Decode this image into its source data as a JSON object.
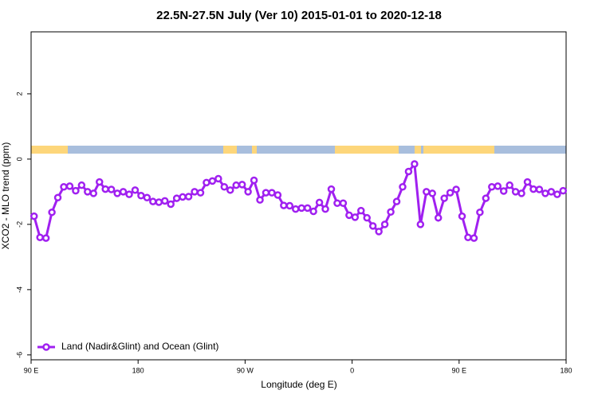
{
  "chart_data": {
    "type": "line",
    "title": "22.5N-27.5N July (Ver 10)   2015-01-01 to 2020-12-18",
    "x_label": "Longitude (deg E)",
    "y_label": "XCO2 - MLO trend (ppm)",
    "x": [
      92.5,
      97.5,
      102.5,
      107.5,
      112.5,
      117.5,
      122.5,
      127.5,
      132.5,
      137.5,
      142.5,
      147.5,
      152.5,
      157.5,
      162.5,
      167.5,
      172.5,
      177.5,
      182.5,
      187.5,
      192.5,
      197.5,
      202.5,
      207.5,
      212.5,
      217.5,
      222.5,
      227.5,
      232.5,
      237.5,
      242.5,
      247.5,
      252.5,
      257.5,
      262.5,
      267.5,
      272.5,
      277.5,
      282.5,
      287.5,
      292.5,
      297.5,
      302.5,
      307.5,
      312.5,
      317.5,
      322.5,
      327.5,
      332.5,
      337.5,
      342.5,
      347.5,
      352.5,
      357.5,
      362.5,
      367.5,
      372.5,
      377.5,
      382.5,
      387.5,
      392.5,
      397.5,
      402.5,
      407.5,
      412.5,
      417.5,
      422.5,
      427.5,
      432.5,
      437.5,
      442.5,
      447.5,
      452.5,
      457.5,
      462.5,
      467.5,
      472.5,
      477.5,
      482.5,
      487.5,
      492.5,
      497.5,
      502.5,
      507.5,
      512.5,
      517.5,
      522.5,
      527.5,
      532.5,
      537.5
    ],
    "series": [
      {
        "name": "Land (Nadir&Glint) and Ocean (Glint)",
        "color": "#a020f0",
        "values": [
          -1.75,
          -2.4,
          -2.42,
          -1.63,
          -1.18,
          -0.85,
          -0.83,
          -0.97,
          -0.8,
          -1.0,
          -1.05,
          -0.7,
          -0.92,
          -0.93,
          -1.05,
          -1.0,
          -1.08,
          -0.95,
          -1.12,
          -1.18,
          -1.3,
          -1.32,
          -1.28,
          -1.38,
          -1.2,
          -1.16,
          -1.15,
          -1.0,
          -1.03,
          -0.72,
          -0.67,
          -0.6,
          -0.85,
          -0.95,
          -0.8,
          -0.78,
          -1.0,
          -0.65,
          -1.25,
          -1.03,
          -1.03,
          -1.1,
          -1.42,
          -1.43,
          -1.53,
          -1.5,
          -1.5,
          -1.6,
          -1.33,
          -1.53,
          -0.92,
          -1.35,
          -1.35,
          -1.72,
          -1.78,
          -1.58,
          -1.8,
          -2.05,
          -2.22,
          -2.0,
          -1.62,
          -1.3,
          -0.85,
          -0.38,
          -0.15,
          -2.0,
          -1.0,
          -1.05,
          -1.8,
          -1.2,
          -1.03,
          -0.93,
          -1.75,
          -2.4,
          -2.42,
          -1.63,
          -1.2,
          -0.85,
          -0.83,
          -0.98,
          -0.8,
          -1.0,
          -1.05,
          -0.7,
          -0.92,
          -0.93,
          -1.05,
          -1.0,
          -1.08,
          -0.97
        ]
      }
    ],
    "xlim": [
      90,
      540
    ],
    "xticks": [
      {
        "value": 90,
        "label": "90 E"
      },
      {
        "value": 180,
        "label": "180"
      },
      {
        "value": 270,
        "label": "90 W"
      },
      {
        "value": 360,
        "label": "0"
      },
      {
        "value": 450,
        "label": "90 E"
      },
      {
        "value": 540,
        "label": "180"
      }
    ],
    "ylim": [
      -6.15,
      3.9
    ],
    "yticks": [
      2,
      0,
      -2,
      -4,
      -6
    ],
    "legend": "bottom-left"
  }
}
